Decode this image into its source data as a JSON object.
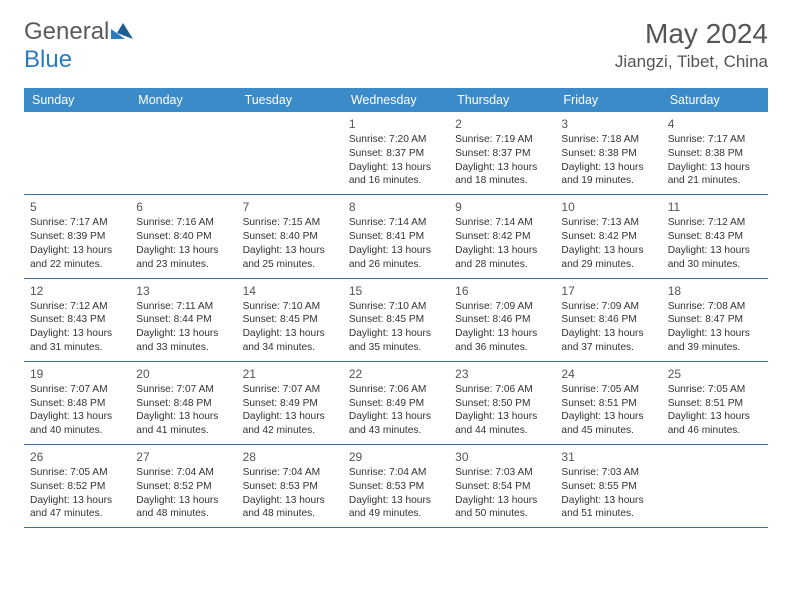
{
  "brand": {
    "part1": "General",
    "part2": "Blue"
  },
  "title": "May 2024",
  "location": "Jiangzi, Tibet, China",
  "colors": {
    "header_bg": "#3b8bc9",
    "border": "#3b6fa0",
    "text": "#333333",
    "muted": "#555555",
    "brand_blue": "#2b7bbf"
  },
  "weekdays": [
    "Sunday",
    "Monday",
    "Tuesday",
    "Wednesday",
    "Thursday",
    "Friday",
    "Saturday"
  ],
  "weeks": [
    [
      null,
      null,
      null,
      {
        "n": "1",
        "sr": "Sunrise: 7:20 AM",
        "ss": "Sunset: 8:37 PM",
        "d1": "Daylight: 13 hours",
        "d2": "and 16 minutes."
      },
      {
        "n": "2",
        "sr": "Sunrise: 7:19 AM",
        "ss": "Sunset: 8:37 PM",
        "d1": "Daylight: 13 hours",
        "d2": "and 18 minutes."
      },
      {
        "n": "3",
        "sr": "Sunrise: 7:18 AM",
        "ss": "Sunset: 8:38 PM",
        "d1": "Daylight: 13 hours",
        "d2": "and 19 minutes."
      },
      {
        "n": "4",
        "sr": "Sunrise: 7:17 AM",
        "ss": "Sunset: 8:38 PM",
        "d1": "Daylight: 13 hours",
        "d2": "and 21 minutes."
      }
    ],
    [
      {
        "n": "5",
        "sr": "Sunrise: 7:17 AM",
        "ss": "Sunset: 8:39 PM",
        "d1": "Daylight: 13 hours",
        "d2": "and 22 minutes."
      },
      {
        "n": "6",
        "sr": "Sunrise: 7:16 AM",
        "ss": "Sunset: 8:40 PM",
        "d1": "Daylight: 13 hours",
        "d2": "and 23 minutes."
      },
      {
        "n": "7",
        "sr": "Sunrise: 7:15 AM",
        "ss": "Sunset: 8:40 PM",
        "d1": "Daylight: 13 hours",
        "d2": "and 25 minutes."
      },
      {
        "n": "8",
        "sr": "Sunrise: 7:14 AM",
        "ss": "Sunset: 8:41 PM",
        "d1": "Daylight: 13 hours",
        "d2": "and 26 minutes."
      },
      {
        "n": "9",
        "sr": "Sunrise: 7:14 AM",
        "ss": "Sunset: 8:42 PM",
        "d1": "Daylight: 13 hours",
        "d2": "and 28 minutes."
      },
      {
        "n": "10",
        "sr": "Sunrise: 7:13 AM",
        "ss": "Sunset: 8:42 PM",
        "d1": "Daylight: 13 hours",
        "d2": "and 29 minutes."
      },
      {
        "n": "11",
        "sr": "Sunrise: 7:12 AM",
        "ss": "Sunset: 8:43 PM",
        "d1": "Daylight: 13 hours",
        "d2": "and 30 minutes."
      }
    ],
    [
      {
        "n": "12",
        "sr": "Sunrise: 7:12 AM",
        "ss": "Sunset: 8:43 PM",
        "d1": "Daylight: 13 hours",
        "d2": "and 31 minutes."
      },
      {
        "n": "13",
        "sr": "Sunrise: 7:11 AM",
        "ss": "Sunset: 8:44 PM",
        "d1": "Daylight: 13 hours",
        "d2": "and 33 minutes."
      },
      {
        "n": "14",
        "sr": "Sunrise: 7:10 AM",
        "ss": "Sunset: 8:45 PM",
        "d1": "Daylight: 13 hours",
        "d2": "and 34 minutes."
      },
      {
        "n": "15",
        "sr": "Sunrise: 7:10 AM",
        "ss": "Sunset: 8:45 PM",
        "d1": "Daylight: 13 hours",
        "d2": "and 35 minutes."
      },
      {
        "n": "16",
        "sr": "Sunrise: 7:09 AM",
        "ss": "Sunset: 8:46 PM",
        "d1": "Daylight: 13 hours",
        "d2": "and 36 minutes."
      },
      {
        "n": "17",
        "sr": "Sunrise: 7:09 AM",
        "ss": "Sunset: 8:46 PM",
        "d1": "Daylight: 13 hours",
        "d2": "and 37 minutes."
      },
      {
        "n": "18",
        "sr": "Sunrise: 7:08 AM",
        "ss": "Sunset: 8:47 PM",
        "d1": "Daylight: 13 hours",
        "d2": "and 39 minutes."
      }
    ],
    [
      {
        "n": "19",
        "sr": "Sunrise: 7:07 AM",
        "ss": "Sunset: 8:48 PM",
        "d1": "Daylight: 13 hours",
        "d2": "and 40 minutes."
      },
      {
        "n": "20",
        "sr": "Sunrise: 7:07 AM",
        "ss": "Sunset: 8:48 PM",
        "d1": "Daylight: 13 hours",
        "d2": "and 41 minutes."
      },
      {
        "n": "21",
        "sr": "Sunrise: 7:07 AM",
        "ss": "Sunset: 8:49 PM",
        "d1": "Daylight: 13 hours",
        "d2": "and 42 minutes."
      },
      {
        "n": "22",
        "sr": "Sunrise: 7:06 AM",
        "ss": "Sunset: 8:49 PM",
        "d1": "Daylight: 13 hours",
        "d2": "and 43 minutes."
      },
      {
        "n": "23",
        "sr": "Sunrise: 7:06 AM",
        "ss": "Sunset: 8:50 PM",
        "d1": "Daylight: 13 hours",
        "d2": "and 44 minutes."
      },
      {
        "n": "24",
        "sr": "Sunrise: 7:05 AM",
        "ss": "Sunset: 8:51 PM",
        "d1": "Daylight: 13 hours",
        "d2": "and 45 minutes."
      },
      {
        "n": "25",
        "sr": "Sunrise: 7:05 AM",
        "ss": "Sunset: 8:51 PM",
        "d1": "Daylight: 13 hours",
        "d2": "and 46 minutes."
      }
    ],
    [
      {
        "n": "26",
        "sr": "Sunrise: 7:05 AM",
        "ss": "Sunset: 8:52 PM",
        "d1": "Daylight: 13 hours",
        "d2": "and 47 minutes."
      },
      {
        "n": "27",
        "sr": "Sunrise: 7:04 AM",
        "ss": "Sunset: 8:52 PM",
        "d1": "Daylight: 13 hours",
        "d2": "and 48 minutes."
      },
      {
        "n": "28",
        "sr": "Sunrise: 7:04 AM",
        "ss": "Sunset: 8:53 PM",
        "d1": "Daylight: 13 hours",
        "d2": "and 48 minutes."
      },
      {
        "n": "29",
        "sr": "Sunrise: 7:04 AM",
        "ss": "Sunset: 8:53 PM",
        "d1": "Daylight: 13 hours",
        "d2": "and 49 minutes."
      },
      {
        "n": "30",
        "sr": "Sunrise: 7:03 AM",
        "ss": "Sunset: 8:54 PM",
        "d1": "Daylight: 13 hours",
        "d2": "and 50 minutes."
      },
      {
        "n": "31",
        "sr": "Sunrise: 7:03 AM",
        "ss": "Sunset: 8:55 PM",
        "d1": "Daylight: 13 hours",
        "d2": "and 51 minutes."
      },
      null
    ]
  ]
}
